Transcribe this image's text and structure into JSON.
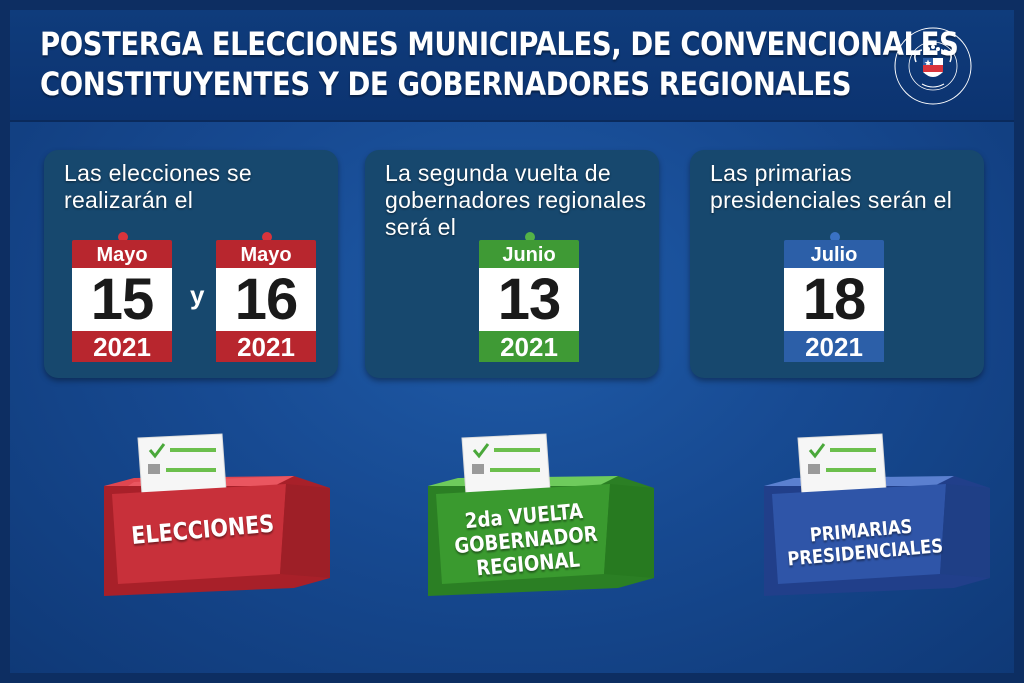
{
  "title": {
    "line1": "POSTERGA ELECCIONES MUNICIPALES, DE CONVENCIONALES",
    "line2": "CONSTITUYENTES Y DE GOBERNADORES REGIONALES"
  },
  "seal": {
    "top_text": "CÁMARA DE DIPUTADAS Y DIPUTADOS",
    "bottom_text": "CHILE"
  },
  "cards": [
    {
      "text": "Las elecciones se\nrealizarán el",
      "separator": "y",
      "calendars": [
        {
          "month": "Mayo",
          "day": "15",
          "year": "2021",
          "color": "#b8262e"
        },
        {
          "month": "Mayo",
          "day": "16",
          "year": "2021",
          "color": "#b8262e"
        }
      ]
    },
    {
      "text": "La segunda vuelta de\ngobernadores regionales\nserá el",
      "calendars": [
        {
          "month": "Junio",
          "day": "13",
          "year": "2021",
          "color": "#3f9a35"
        }
      ]
    },
    {
      "text": "Las primarias\npresidenciales serán el",
      "calendars": [
        {
          "month": "Julio",
          "day": "18",
          "year": "2021",
          "color": "#2c5fa8"
        }
      ]
    }
  ],
  "boxes": [
    {
      "label": "ELECCIONES",
      "color": "#c8303a"
    },
    {
      "label": "2da VUELTA\nGOBERNADOR\nREGIONAL",
      "color": "#3a9a2f"
    },
    {
      "label": "PRIMARIAS\nPRESIDENCIALES",
      "color": "#2f55a8"
    }
  ]
}
